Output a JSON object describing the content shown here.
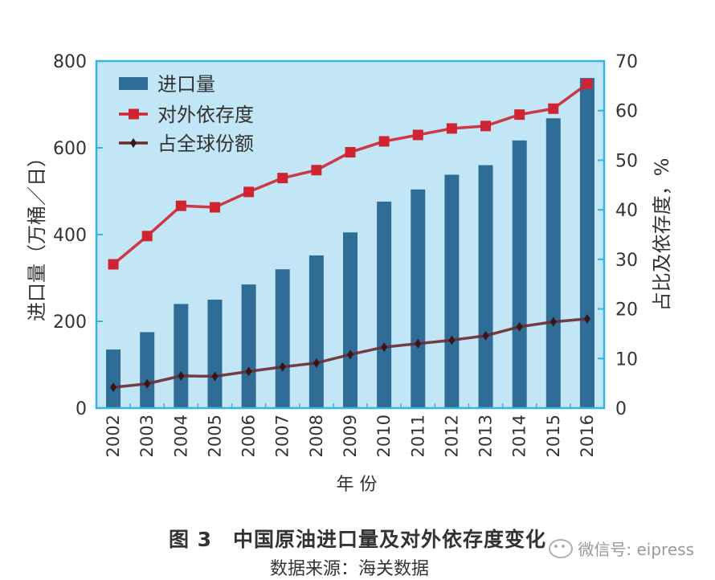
{
  "chart_data": {
    "type": "bar+line",
    "categories": [
      "2002",
      "2003",
      "2004",
      "2005",
      "2006",
      "2007",
      "2008",
      "2009",
      "2010",
      "2011",
      "2012",
      "2013",
      "2014",
      "2015",
      "2016"
    ],
    "series": [
      {
        "name": "进口量",
        "type": "bar",
        "axis": "left",
        "values": [
          135,
          175,
          240,
          250,
          285,
          320,
          352,
          405,
          476,
          504,
          538,
          560,
          617,
          668,
          761
        ]
      },
      {
        "name": "对外依存度",
        "type": "line",
        "axis": "right",
        "marker": "square",
        "values": [
          29,
          34.7,
          40.8,
          40.5,
          43.6,
          46.4,
          48.0,
          51.6,
          53.8,
          55.1,
          56.4,
          56.9,
          59.2,
          60.4,
          65.4
        ]
      },
      {
        "name": "占全球份额",
        "type": "line",
        "axis": "right",
        "marker": "diamond",
        "values": [
          4.2,
          4.9,
          6.5,
          6.4,
          7.4,
          8.3,
          9.1,
          10.8,
          12.3,
          13.0,
          13.7,
          14.6,
          16.4,
          17.4,
          18.0
        ]
      }
    ],
    "xlabel": "年 份",
    "ylabel": "进口量（万桶／日）",
    "y2label": "占比及依存度，%",
    "ylim": [
      0,
      800
    ],
    "y2lim": [
      0,
      70
    ],
    "yticks": [
      0,
      200,
      400,
      600,
      800
    ],
    "y2ticks": [
      0,
      10,
      20,
      30,
      40,
      50,
      60,
      70
    ],
    "legend_position": "top-left",
    "grid": false
  },
  "caption": {
    "title": "图 3　中国原油进口量及对外依存度变化",
    "source": "数据来源：海关数据"
  },
  "watermark": "微信号: eipress",
  "colors": {
    "plot_bg": "#c2e6f6",
    "frame": "#37b4e0",
    "bar": "#2f6d97",
    "dependency_line": "#cf2431",
    "share_line": "#6b2a32"
  }
}
